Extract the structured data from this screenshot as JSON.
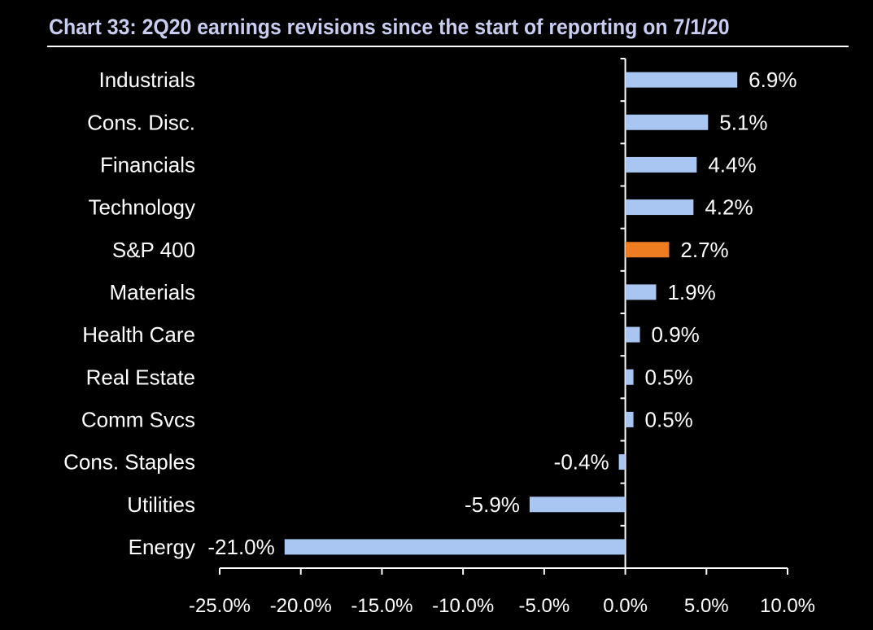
{
  "chart_data": {
    "type": "bar",
    "orientation": "horizontal",
    "title": "Chart 33: 2Q20 earnings revisions since the start of reporting on 7/1/20",
    "categories": [
      "Industrials",
      "Cons. Disc.",
      "Financials",
      "Technology",
      "S&P 400",
      "Materials",
      "Health Care",
      "Real Estate",
      "Comm Svcs",
      "Cons. Staples",
      "Utilities",
      "Energy"
    ],
    "values": [
      6.9,
      5.1,
      4.4,
      4.2,
      2.7,
      1.9,
      0.9,
      0.5,
      0.5,
      -0.4,
      -5.9,
      -21.0
    ],
    "value_labels": [
      "6.9%",
      "5.1%",
      "4.4%",
      "4.2%",
      "2.7%",
      "1.9%",
      "0.9%",
      "0.5%",
      "0.5%",
      "-0.4%",
      "-5.9%",
      "-21.0%"
    ],
    "highlight_index": 4,
    "colors": {
      "bar": "#a9c6f2",
      "highlight": "#ee7d22",
      "background": "#000000",
      "text": "#ffffff",
      "title": "#c9cdf0"
    },
    "xlim": [
      -25,
      10
    ],
    "xticks": [
      -25,
      -20,
      -15,
      -10,
      -5,
      0,
      5,
      10
    ],
    "xtick_labels": [
      "-25.0%",
      "-20.0%",
      "-15.0%",
      "-10.0%",
      "-5.0%",
      "0.0%",
      "5.0%",
      "10.0%"
    ],
    "xlabel": "",
    "ylabel": "",
    "grid": false,
    "legend": "none"
  }
}
